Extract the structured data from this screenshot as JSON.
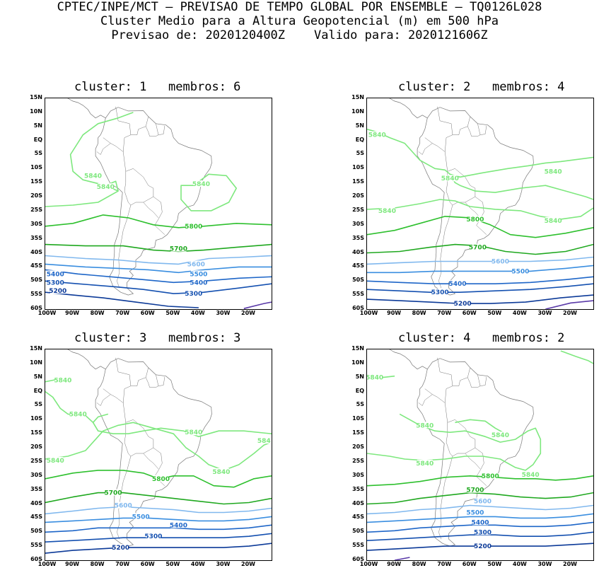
{
  "header": {
    "line1": "CPTEC/INPE/MCT – PREVISAO DE TEMPO GLOBAL POR ENSEMBLE – TQ0126L028",
    "line2": "Cluster Medio para a Altura Geopotencial (m) em 500 hPa",
    "line3": "Previsao de: 2020120400Z    Valido para: 2020121606Z"
  },
  "axes": {
    "lat_labels": [
      "15N",
      "10N",
      "5N",
      "EQ",
      "5S",
      "10S",
      "15S",
      "20S",
      "25S",
      "30S",
      "35S",
      "40S",
      "45S",
      "50S",
      "55S",
      "60S"
    ],
    "lon_labels": [
      "100W",
      "90W",
      "80W",
      "70W",
      "60W",
      "50W",
      "40W",
      "30W",
      "20W"
    ]
  },
  "colors": {
    "c5840": "#7ee87e",
    "c5800": "#2ec02e",
    "c5700": "#1fa81f",
    "c5600": "#80b8ee",
    "c5500": "#3a8ee0",
    "c5400": "#1e66c8",
    "c5300": "#1450b0",
    "c5200": "#0c3a98",
    "c5100": "#5a3aa8",
    "coast": "#777777"
  },
  "panels": [
    {
      "title": "cluster: 1   membros: 6",
      "labels": [
        {
          "text": "5840",
          "lon": -82,
          "lat": -12.5,
          "c": "c5840"
        },
        {
          "text": "5840",
          "lon": -77,
          "lat": -16.5,
          "c": "c5840"
        },
        {
          "text": "5840",
          "lon": -39,
          "lat": -15.5,
          "c": "c5840"
        },
        {
          "text": "5800",
          "lon": -42,
          "lat": -30.5,
          "c": "c5800"
        },
        {
          "text": "5700",
          "lon": -48,
          "lat": -38.5,
          "c": "c5700"
        },
        {
          "text": "5600",
          "lon": -41,
          "lat": -44,
          "c": "c5600"
        },
        {
          "text": "5500",
          "lon": -40,
          "lat": -47.5,
          "c": "c5500"
        },
        {
          "text": "5400",
          "lon": -40,
          "lat": -50.5,
          "c": "c5400"
        },
        {
          "text": "5300",
          "lon": -42,
          "lat": -54.5,
          "c": "c5300"
        },
        {
          "text": "5200",
          "lon": -96,
          "lat": -53.5,
          "c": "c5200"
        },
        {
          "text": "5400",
          "lon": -97,
          "lat": -47.5,
          "c": "c5400"
        },
        {
          "text": "5300",
          "lon": -97,
          "lat": -50.5,
          "c": "c5300"
        }
      ]
    },
    {
      "title": "cluster: 2   membros: 4",
      "labels": [
        {
          "text": "5840",
          "lon": -97,
          "lat": 2,
          "c": "c5840"
        },
        {
          "text": "5840",
          "lon": -68,
          "lat": -13.5,
          "c": "c5840"
        },
        {
          "text": "5840",
          "lon": -27,
          "lat": -11,
          "c": "c5840"
        },
        {
          "text": "5840",
          "lon": -93,
          "lat": -25,
          "c": "c5840"
        },
        {
          "text": "5840",
          "lon": -27,
          "lat": -28.5,
          "c": "c5840"
        },
        {
          "text": "5800",
          "lon": -58,
          "lat": -28,
          "c": "c5800"
        },
        {
          "text": "5700",
          "lon": -57,
          "lat": -38,
          "c": "c5700"
        },
        {
          "text": "5600",
          "lon": -48,
          "lat": -43,
          "c": "c5600"
        },
        {
          "text": "5500",
          "lon": -40,
          "lat": -46.5,
          "c": "c5500"
        },
        {
          "text": "5400",
          "lon": -65,
          "lat": -51,
          "c": "c5400"
        },
        {
          "text": "5300",
          "lon": -72,
          "lat": -54,
          "c": "c5300"
        },
        {
          "text": "5200",
          "lon": -63,
          "lat": -58,
          "c": "c5200"
        }
      ]
    },
    {
      "title": "cluster: 3   membros: 3",
      "labels": [
        {
          "text": "5840",
          "lon": -88,
          "lat": -8,
          "c": "c5840"
        },
        {
          "text": "5840",
          "lon": -94,
          "lat": 4,
          "c": "c5840"
        },
        {
          "text": "5840",
          "lon": -42,
          "lat": -14.5,
          "c": "c5840"
        },
        {
          "text": "5840",
          "lon": -97,
          "lat": -24.5,
          "c": "c5840"
        },
        {
          "text": "5840",
          "lon": -31,
          "lat": -28.5,
          "c": "c5840"
        },
        {
          "text": "584",
          "lon": -14,
          "lat": -17.5,
          "c": "c5840"
        },
        {
          "text": "5800",
          "lon": -55,
          "lat": -31,
          "c": "c5800"
        },
        {
          "text": "5700",
          "lon": -74,
          "lat": -36,
          "c": "c5700"
        },
        {
          "text": "5600",
          "lon": -70,
          "lat": -40.5,
          "c": "c5600"
        },
        {
          "text": "5500",
          "lon": -63,
          "lat": -44.5,
          "c": "c5500"
        },
        {
          "text": "5400",
          "lon": -48,
          "lat": -47.5,
          "c": "c5400"
        },
        {
          "text": "5300",
          "lon": -58,
          "lat": -51.5,
          "c": "c5300"
        },
        {
          "text": "5200",
          "lon": -71,
          "lat": -55.5,
          "c": "c5200"
        }
      ]
    },
    {
      "title": "cluster: 4   membros: 2",
      "labels": [
        {
          "text": "5840",
          "lon": -98,
          "lat": 5,
          "c": "c5840"
        },
        {
          "text": "5840",
          "lon": -78,
          "lat": -12,
          "c": "c5840"
        },
        {
          "text": "5840",
          "lon": -48,
          "lat": -15.5,
          "c": "c5840"
        },
        {
          "text": "5840",
          "lon": -78,
          "lat": -25.5,
          "c": "c5840"
        },
        {
          "text": "5840",
          "lon": -36,
          "lat": -29.5,
          "c": "c5840"
        },
        {
          "text": "5800",
          "lon": -52,
          "lat": -30,
          "c": "c5800"
        },
        {
          "text": "5700",
          "lon": -58,
          "lat": -35,
          "c": "c5700"
        },
        {
          "text": "5600",
          "lon": -55,
          "lat": -39,
          "c": "c5600"
        },
        {
          "text": "5500",
          "lon": -58,
          "lat": -43,
          "c": "c5500"
        },
        {
          "text": "5400",
          "lon": -56,
          "lat": -46.5,
          "c": "c5400"
        },
        {
          "text": "5300",
          "lon": -55,
          "lat": -50,
          "c": "c5300"
        },
        {
          "text": "5200",
          "lon": -55,
          "lat": -55,
          "c": "c5200"
        }
      ]
    }
  ]
}
